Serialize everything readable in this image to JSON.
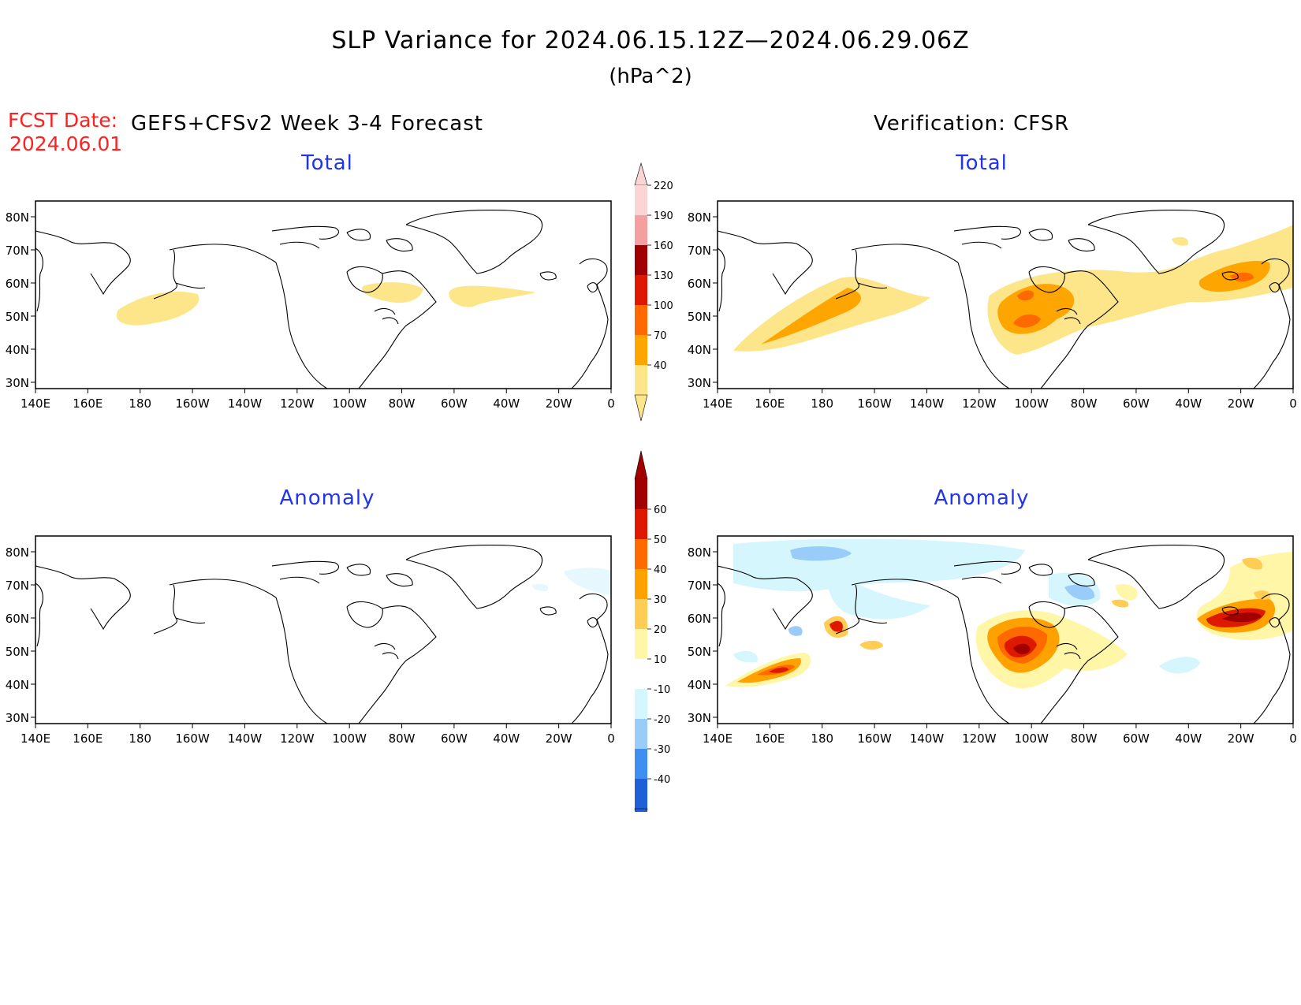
{
  "title": "SLP Variance for 2024.06.15.12Z—2024.06.29.06Z",
  "units": "(hPa^2)",
  "fcst_label": "FCST Date:",
  "fcst_date": "2024.06.01",
  "left_header": "GEFS+CFSv2 Week 3-4 Forecast",
  "right_header": "Verification: CFSR",
  "panel_titles": {
    "total": "Total",
    "anomaly": "Anomaly"
  },
  "lat_labels": [
    "80N",
    "70N",
    "60N",
    "50N",
    "40N",
    "30N"
  ],
  "lon_labels": [
    "140E",
    "160E",
    "180",
    "160W",
    "140W",
    "120W",
    "100W",
    "80W",
    "60W",
    "40W",
    "20W",
    "0"
  ],
  "colorbar_total": {
    "levels": [
      "40",
      "70",
      "100",
      "130",
      "160",
      "190",
      "220"
    ],
    "colors": [
      "#fde68a",
      "#ffa500",
      "#ff6a00",
      "#dd1a00",
      "#a00000",
      "#f4a0a0",
      "#fbd4d4"
    ]
  },
  "colorbar_anomaly": {
    "levels": [
      "-40",
      "-30",
      "-20",
      "-10",
      "10",
      "20",
      "30",
      "40",
      "50",
      "60"
    ],
    "colors": [
      "#1e60d8",
      "#3f8ff0",
      "#99ccf8",
      "#d6f6fe",
      "#ffffff",
      "#fff6a8",
      "#ffcc55",
      "#ffa200",
      "#ff6a00",
      "#dd1a00",
      "#a00000"
    ]
  }
}
